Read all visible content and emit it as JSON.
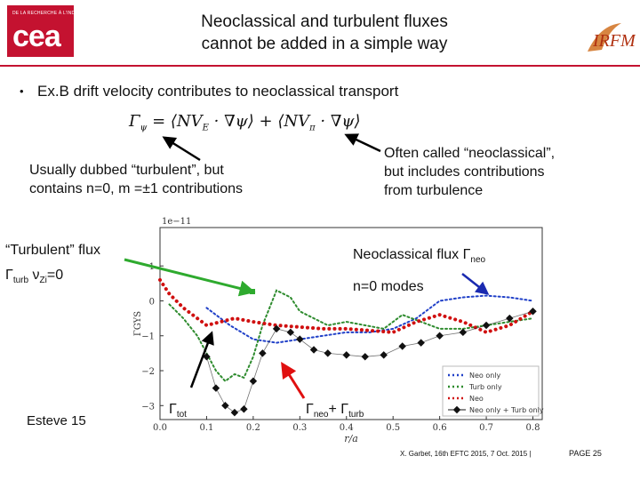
{
  "header": {
    "cea_logo_text": "cea",
    "cea_small_text": "DE LA RECHERCHE À L'INDUSTRIE",
    "title_line1": "Neoclassical and turbulent fluxes",
    "title_line2": "cannot be added in a simple way",
    "irfm_logo_text": "IRFM"
  },
  "bullet": {
    "marker": "•",
    "text": "Ex.B drift velocity contributes to neoclassical transport"
  },
  "formula": {
    "gamma": "Γ",
    "psi": "ψ",
    "eq": " = ⟨NV",
    "E": "E",
    "grad1": " · ∇ψ⟩ + ⟨NV",
    "pi": "π",
    "grad2": " · ∇ψ⟩"
  },
  "annotations": {
    "left_line1": "Usually dubbed “turbulent”, but",
    "left_line2": "contains n=0, m =±1 contributions",
    "right_line1": "Often called “neoclassical”,",
    "right_line2": "but includes contributions",
    "right_line3": "from turbulence",
    "turb_line1": "“Turbulent” flux",
    "turb_gamma": "Γ",
    "turb_sub": "turb",
    "turb_nu": " ν",
    "turb_nusub": "Zi",
    "turb_eq": "=0",
    "neo_line1": "Neoclassical flux Γ",
    "neo_sub": "neo",
    "neo_line2": "n=0 modes",
    "esteve": "Esteve  15",
    "gtot": "Γ",
    "gtot_sub": "tot",
    "gsum_g1": "Γ",
    "gsum_s1": "neo",
    "gsum_plus": "+ Γ",
    "gsum_s2": "turb"
  },
  "footer": {
    "citation": "X. Garbet, 16th EFTC 2015, 7 Oct. 2015 |",
    "page": "PAGE 25"
  },
  "chart_data": {
    "type": "line",
    "title": "",
    "xlabel": "r/a",
    "ylabel": "ΓGYS",
    "scale_label": "1e−11",
    "xlim": [
      0.0,
      0.82
    ],
    "ylim": [
      -3.4,
      2.1
    ],
    "xticks": [
      0.0,
      0.1,
      0.2,
      0.3,
      0.4,
      0.5,
      0.6,
      0.7,
      0.8
    ],
    "yticks": [
      1,
      0,
      -1,
      -2,
      -3
    ],
    "legend_position": "bottom-right",
    "series": [
      {
        "name": "Neo only",
        "color": "#2040c8",
        "style": "dotted",
        "x": [
          0.1,
          0.15,
          0.2,
          0.25,
          0.3,
          0.35,
          0.4,
          0.45,
          0.5,
          0.55,
          0.6,
          0.65,
          0.7,
          0.75,
          0.8
        ],
        "y": [
          -0.2,
          -0.7,
          -1.1,
          -1.2,
          -1.1,
          -1.0,
          -0.9,
          -0.9,
          -0.8,
          -0.5,
          0.0,
          0.1,
          0.15,
          0.1,
          0.0
        ]
      },
      {
        "name": "Turb only",
        "color": "#2e8b2e",
        "style": "dotted",
        "x": [
          0.02,
          0.05,
          0.08,
          0.1,
          0.12,
          0.14,
          0.16,
          0.18,
          0.2,
          0.22,
          0.25,
          0.28,
          0.3,
          0.33,
          0.36,
          0.4,
          0.44,
          0.48,
          0.52,
          0.56,
          0.6,
          0.65,
          0.7,
          0.75,
          0.8
        ],
        "y": [
          -0.1,
          -0.5,
          -1.0,
          -1.5,
          -2.0,
          -2.3,
          -2.1,
          -2.2,
          -1.6,
          -0.7,
          0.3,
          0.1,
          -0.3,
          -0.5,
          -0.7,
          -0.6,
          -0.7,
          -0.8,
          -0.4,
          -0.6,
          -0.8,
          -0.8,
          -0.7,
          -0.6,
          -0.5
        ]
      },
      {
        "name": "Neo",
        "color": "#d01010",
        "style": "dotted-thick",
        "x": [
          0.0,
          0.02,
          0.05,
          0.08,
          0.1,
          0.13,
          0.16,
          0.2,
          0.25,
          0.3,
          0.35,
          0.4,
          0.45,
          0.5,
          0.55,
          0.6,
          0.65,
          0.7,
          0.75,
          0.8
        ],
        "y": [
          0.6,
          0.2,
          -0.2,
          -0.5,
          -0.7,
          -0.6,
          -0.5,
          -0.6,
          -0.7,
          -0.75,
          -0.8,
          -0.8,
          -0.85,
          -0.9,
          -0.6,
          -0.4,
          -0.6,
          -0.9,
          -0.7,
          -0.3
        ]
      },
      {
        "name": "Neo only + Turb only",
        "color": "#111111",
        "style": "diamonds",
        "x": [
          0.1,
          0.12,
          0.14,
          0.16,
          0.18,
          0.2,
          0.22,
          0.25,
          0.28,
          0.3,
          0.33,
          0.36,
          0.4,
          0.44,
          0.48,
          0.52,
          0.56,
          0.6,
          0.65,
          0.7,
          0.75,
          0.8
        ],
        "y": [
          -1.6,
          -2.5,
          -3.0,
          -3.2,
          -3.1,
          -2.3,
          -1.5,
          -0.8,
          -0.9,
          -1.1,
          -1.4,
          -1.5,
          -1.55,
          -1.6,
          -1.55,
          -1.3,
          -1.2,
          -1.0,
          -0.9,
          -0.7,
          -0.5,
          -0.3
        ]
      }
    ]
  }
}
